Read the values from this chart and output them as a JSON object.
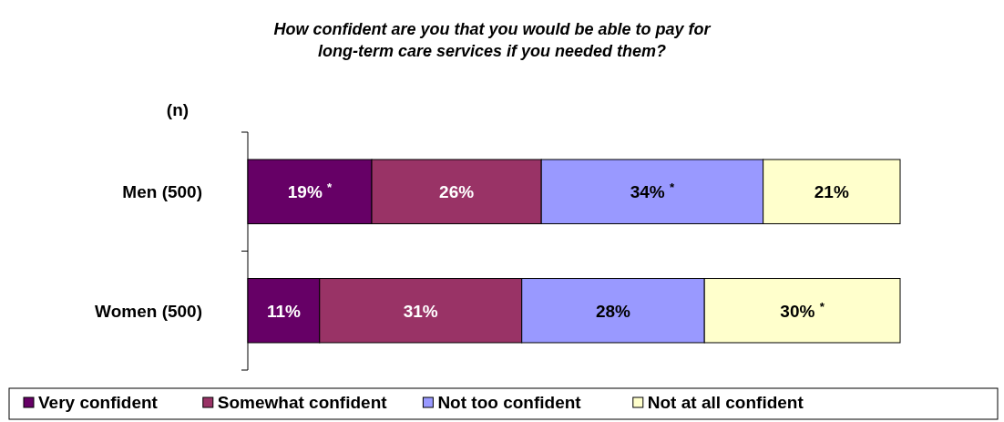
{
  "chart_data": {
    "type": "bar",
    "orientation": "horizontal",
    "stacked": true,
    "title": "How confident are you that you would be able to pay for long-term care services if you needed them?",
    "ylabel": "(n)",
    "categories": [
      "Men (500)",
      "Women (500)"
    ],
    "xlim": [
      0,
      100
    ],
    "tick_labels": "y",
    "legend": "bottom",
    "series": [
      {
        "name": "Very confident",
        "color": "#660066",
        "values": [
          19,
          11
        ],
        "value_labels": [
          "19% $^{*}$",
          "11%"
        ]
      },
      {
        "name": "Somewhat confident",
        "color": "#993366",
        "values": [
          26,
          31
        ],
        "value_labels": [
          "26%",
          "31%"
        ]
      },
      {
        "name": "Not too confident",
        "color": "#9999ff",
        "values": [
          34,
          28
        ],
        "value_labels": [
          "34% $^{*}$",
          "28%"
        ]
      },
      {
        "name": "Not at all confident",
        "color": "#ffffcc",
        "values": [
          21,
          30
        ],
        "value_labels": [
          "21%",
          "30% $^{*}$"
        ]
      }
    ]
  }
}
